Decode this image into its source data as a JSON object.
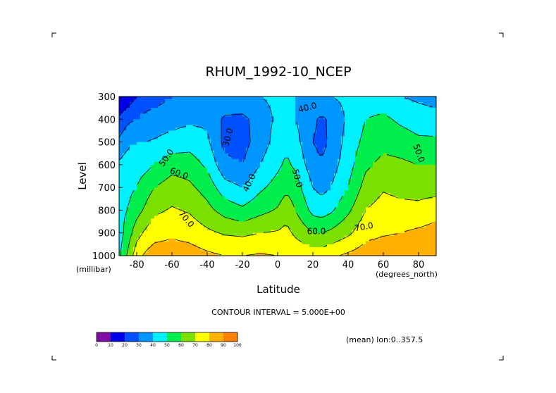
{
  "chart_data": {
    "type": "heatmap",
    "subtype": "filled-contour",
    "title": "RHUM_1992-10_NCEP",
    "xlabel": "Latitude",
    "ylabel": "Level",
    "x_units": "(degrees_north)",
    "y_units": "(millibar)",
    "xlim": [
      -90,
      90
    ],
    "ylim": [
      300,
      1000
    ],
    "y_inverted": true,
    "x_ticks": [
      -80,
      -60,
      -40,
      -20,
      0,
      20,
      40,
      60,
      80
    ],
    "y_ticks": [
      300,
      400,
      500,
      600,
      700,
      800,
      900,
      1000
    ],
    "contour_interval_text": "CONTOUR INTERVAL = 5.000E+00",
    "mean_note": "(mean) lon:0..357.5",
    "colorbar": {
      "ticks": [
        0,
        10,
        20,
        30,
        40,
        50,
        60,
        70,
        80,
        90,
        100
      ],
      "colors": [
        "#7f0fa4",
        "#0000e8",
        "#0050ff",
        "#0096ff",
        "#00f0ff",
        "#00ee4c",
        "#7be000",
        "#ffff00",
        "#ffb000",
        "#ff7f00",
        "#ff0000"
      ]
    },
    "contour_labels": [
      {
        "text": "30.0",
        "lat": -28,
        "lev": 480,
        "angle": -75
      },
      {
        "text": "40.0",
        "lat": 17,
        "lev": 350,
        "angle": -15
      },
      {
        "text": "40.0",
        "lat": -16,
        "lev": 680,
        "angle": -65
      },
      {
        "text": "50.0",
        "lat": -63,
        "lev": 570,
        "angle": -55
      },
      {
        "text": "50.0",
        "lat": 11,
        "lev": 660,
        "angle": 75
      },
      {
        "text": "50.0",
        "lat": 80,
        "lev": 550,
        "angle": 70
      },
      {
        "text": "60.0",
        "lat": -56,
        "lev": 640,
        "angle": 20
      },
      {
        "text": "60.0",
        "lat": 22,
        "lev": 895,
        "angle": 0
      },
      {
        "text": "70.0",
        "lat": -52,
        "lev": 840,
        "angle": 50
      },
      {
        "text": "70.0",
        "lat": 49,
        "lev": 875,
        "angle": -10
      }
    ],
    "profiles": [
      {
        "lat": -90,
        "rh": {
          "300": 8,
          "400": 22,
          "500": 32,
          "600": 42,
          "700": 45,
          "800": 48,
          "900": 45,
          "1000": 48
        }
      },
      {
        "lat": -85,
        "rh": {
          "300": 14,
          "400": 28,
          "500": 38,
          "600": 45,
          "700": 48,
          "800": 50,
          "900": 55,
          "1000": 62
        }
      },
      {
        "lat": -80,
        "rh": {
          "300": 20,
          "400": 30,
          "500": 40,
          "600": 46,
          "700": 50,
          "800": 56,
          "900": 66,
          "1000": 76
        }
      },
      {
        "lat": -75,
        "rh": {
          "300": 24,
          "400": 33,
          "500": 40,
          "600": 47,
          "700": 55,
          "800": 62,
          "900": 72,
          "1000": 82
        }
      },
      {
        "lat": -70,
        "rh": {
          "300": 26,
          "400": 34,
          "500": 41,
          "600": 50,
          "700": 60,
          "800": 68,
          "900": 76,
          "1000": 85
        }
      },
      {
        "lat": -60,
        "rh": {
          "300": 30,
          "400": 36,
          "500": 44,
          "600": 56,
          "700": 65,
          "800": 71,
          "900": 78,
          "1000": 86
        }
      },
      {
        "lat": -50,
        "rh": {
          "300": 34,
          "400": 38,
          "500": 46,
          "600": 55,
          "700": 62,
          "800": 69,
          "900": 76,
          "1000": 85
        }
      },
      {
        "lat": -40,
        "rh": {
          "300": 40,
          "400": 38,
          "500": 42,
          "600": 48,
          "700": 56,
          "800": 63,
          "900": 72,
          "1000": 82
        }
      },
      {
        "lat": -30,
        "rh": {
          "300": 40,
          "400": 28,
          "500": 27,
          "600": 33,
          "700": 44,
          "800": 56,
          "900": 69,
          "1000": 80
        }
      },
      {
        "lat": -20,
        "rh": {
          "300": 40,
          "400": 27,
          "500": 26,
          "600": 30,
          "700": 40,
          "800": 52,
          "900": 68,
          "1000": 80
        }
      },
      {
        "lat": -10,
        "rh": {
          "300": 40,
          "400": 35,
          "500": 35,
          "600": 40,
          "700": 48,
          "800": 57,
          "900": 70,
          "1000": 81
        }
      },
      {
        "lat": 0,
        "rh": {
          "300": 42,
          "400": 42,
          "500": 44,
          "600": 48,
          "700": 54,
          "800": 61,
          "900": 71,
          "1000": 80
        }
      },
      {
        "lat": 5,
        "rh": {
          "300": 42,
          "400": 44,
          "500": 48,
          "600": 52,
          "700": 58,
          "800": 66,
          "900": 73,
          "1000": 80
        }
      },
      {
        "lat": 10,
        "rh": {
          "300": 40,
          "400": 40,
          "500": 44,
          "600": 48,
          "700": 55,
          "800": 60,
          "900": 68,
          "1000": 78
        }
      },
      {
        "lat": 20,
        "rh": {
          "300": 40,
          "400": 32,
          "500": 30,
          "600": 34,
          "700": 40,
          "800": 47,
          "900": 60,
          "1000": 76
        }
      },
      {
        "lat": 25,
        "rh": {
          "300": 40,
          "400": 28,
          "500": 27,
          "600": 31,
          "700": 37,
          "800": 45,
          "900": 60,
          "1000": 76
        }
      },
      {
        "lat": 30,
        "rh": {
          "300": 40,
          "400": 32,
          "500": 32,
          "600": 35,
          "700": 40,
          "800": 48,
          "900": 62,
          "1000": 78
        }
      },
      {
        "lat": 40,
        "rh": {
          "300": 42,
          "400": 42,
          "500": 44,
          "600": 46,
          "700": 50,
          "800": 58,
          "900": 68,
          "1000": 82
        }
      },
      {
        "lat": 50,
        "rh": {
          "300": 45,
          "400": 50,
          "500": 53,
          "600": 58,
          "700": 64,
          "800": 70,
          "900": 77,
          "1000": 85
        }
      },
      {
        "lat": 60,
        "rh": {
          "300": 44,
          "400": 52,
          "500": 57,
          "600": 63,
          "700": 69,
          "800": 74,
          "900": 79,
          "1000": 86
        }
      },
      {
        "lat": 70,
        "rh": {
          "300": 40,
          "400": 48,
          "500": 55,
          "600": 62,
          "700": 67,
          "800": 73,
          "900": 80,
          "1000": 86
        }
      },
      {
        "lat": 80,
        "rh": {
          "300": 38,
          "400": 45,
          "500": 52,
          "600": 60,
          "700": 66,
          "800": 73,
          "900": 82,
          "1000": 82
        }
      },
      {
        "lat": 90,
        "rh": {
          "300": 36,
          "400": 44,
          "500": 52,
          "600": 60,
          "700": 66,
          "800": 76,
          "900": 84,
          "1000": 80
        }
      }
    ]
  }
}
